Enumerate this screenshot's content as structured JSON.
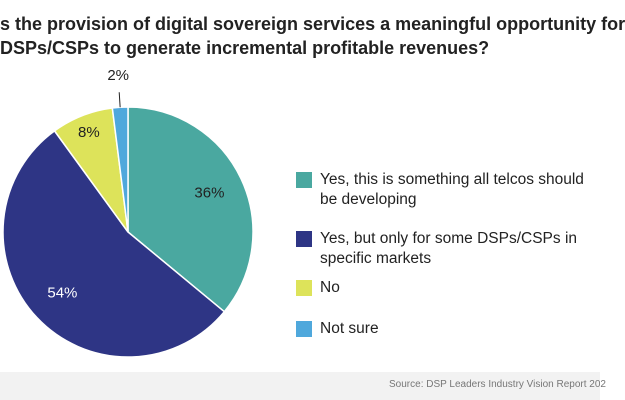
{
  "chart_data": {
    "type": "pie",
    "title": [
      "s the provision of digital sovereign services a meaningful opportunity for",
      "DSPs/CSPs to generate incremental profitable revenues?"
    ],
    "series": [
      {
        "name": "Yes, this is something all telcos should be developing",
        "color": "#4aa8a0",
        "values": [
          36
        ],
        "value_labels": [
          "36%"
        ]
      },
      {
        "name": "Yes, but only for some DSPs/CSPs in specific markets",
        "color": "#2e3585",
        "values": [
          54
        ],
        "value_labels": [
          "54%"
        ]
      },
      {
        "name": "No",
        "color": "#dde35a",
        "values": [
          8
        ],
        "value_labels": [
          "8%"
        ]
      },
      {
        "name": "Not sure",
        "color": "#4fa8dc",
        "values": [
          2
        ],
        "value_labels": [
          "2%"
        ]
      }
    ],
    "source": "Source: DSP Leaders Industry Vision Report 202"
  }
}
